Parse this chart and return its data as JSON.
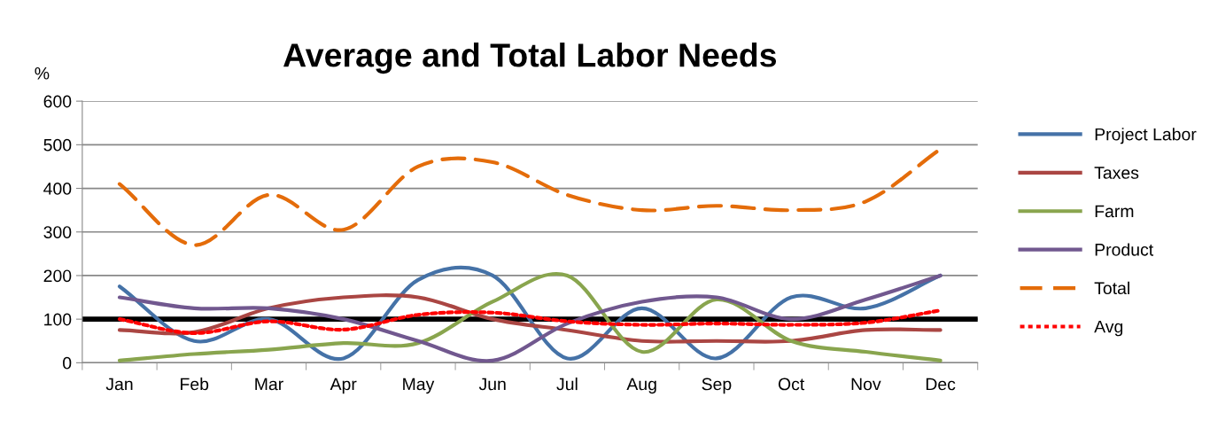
{
  "chart_data": {
    "type": "line",
    "title": "Average and Total Labor Needs",
    "ylabel": "%",
    "categories": [
      "Jan",
      "Feb",
      "Mar",
      "Apr",
      "May",
      "Jun",
      "Jul",
      "Aug",
      "Sep",
      "Oct",
      "Nov",
      "Dec"
    ],
    "series": [
      {
        "name": "Project Labor",
        "color": "#4572a7",
        "line_style": "solid",
        "values": [
          175,
          50,
          100,
          10,
          190,
          200,
          10,
          125,
          10,
          150,
          125,
          200
        ]
      },
      {
        "name": "Taxes",
        "color": "#aa4643",
        "line_style": "solid",
        "values": [
          75,
          70,
          125,
          150,
          150,
          100,
          75,
          50,
          50,
          50,
          75,
          75
        ]
      },
      {
        "name": "Farm",
        "color": "#89a54e",
        "line_style": "solid",
        "values": [
          5,
          20,
          30,
          45,
          45,
          140,
          200,
          25,
          145,
          50,
          25,
          5
        ]
      },
      {
        "name": "Product",
        "color": "#71588f",
        "line_style": "solid",
        "values": [
          150,
          125,
          125,
          100,
          50,
          5,
          90,
          140,
          150,
          100,
          145,
          200
        ]
      },
      {
        "name": "Total",
        "color": "#e46c0a",
        "line_style": "dashed",
        "values": [
          410,
          270,
          385,
          305,
          450,
          460,
          385,
          350,
          360,
          350,
          370,
          490
        ]
      },
      {
        "name": "Avg",
        "color": "#ff0000",
        "line_style": "dotted",
        "values": [
          100,
          68,
          95,
          76,
          110,
          115,
          95,
          87,
          90,
          87,
          92,
          120
        ]
      }
    ],
    "ref_lines": [
      {
        "axis": "y",
        "value": 100,
        "color": "#000000"
      }
    ],
    "ylim": [
      0,
      600
    ],
    "yticks": [
      0,
      100,
      200,
      300,
      400,
      500,
      600
    ],
    "grid": "y",
    "legend": "right",
    "marker": "none"
  }
}
